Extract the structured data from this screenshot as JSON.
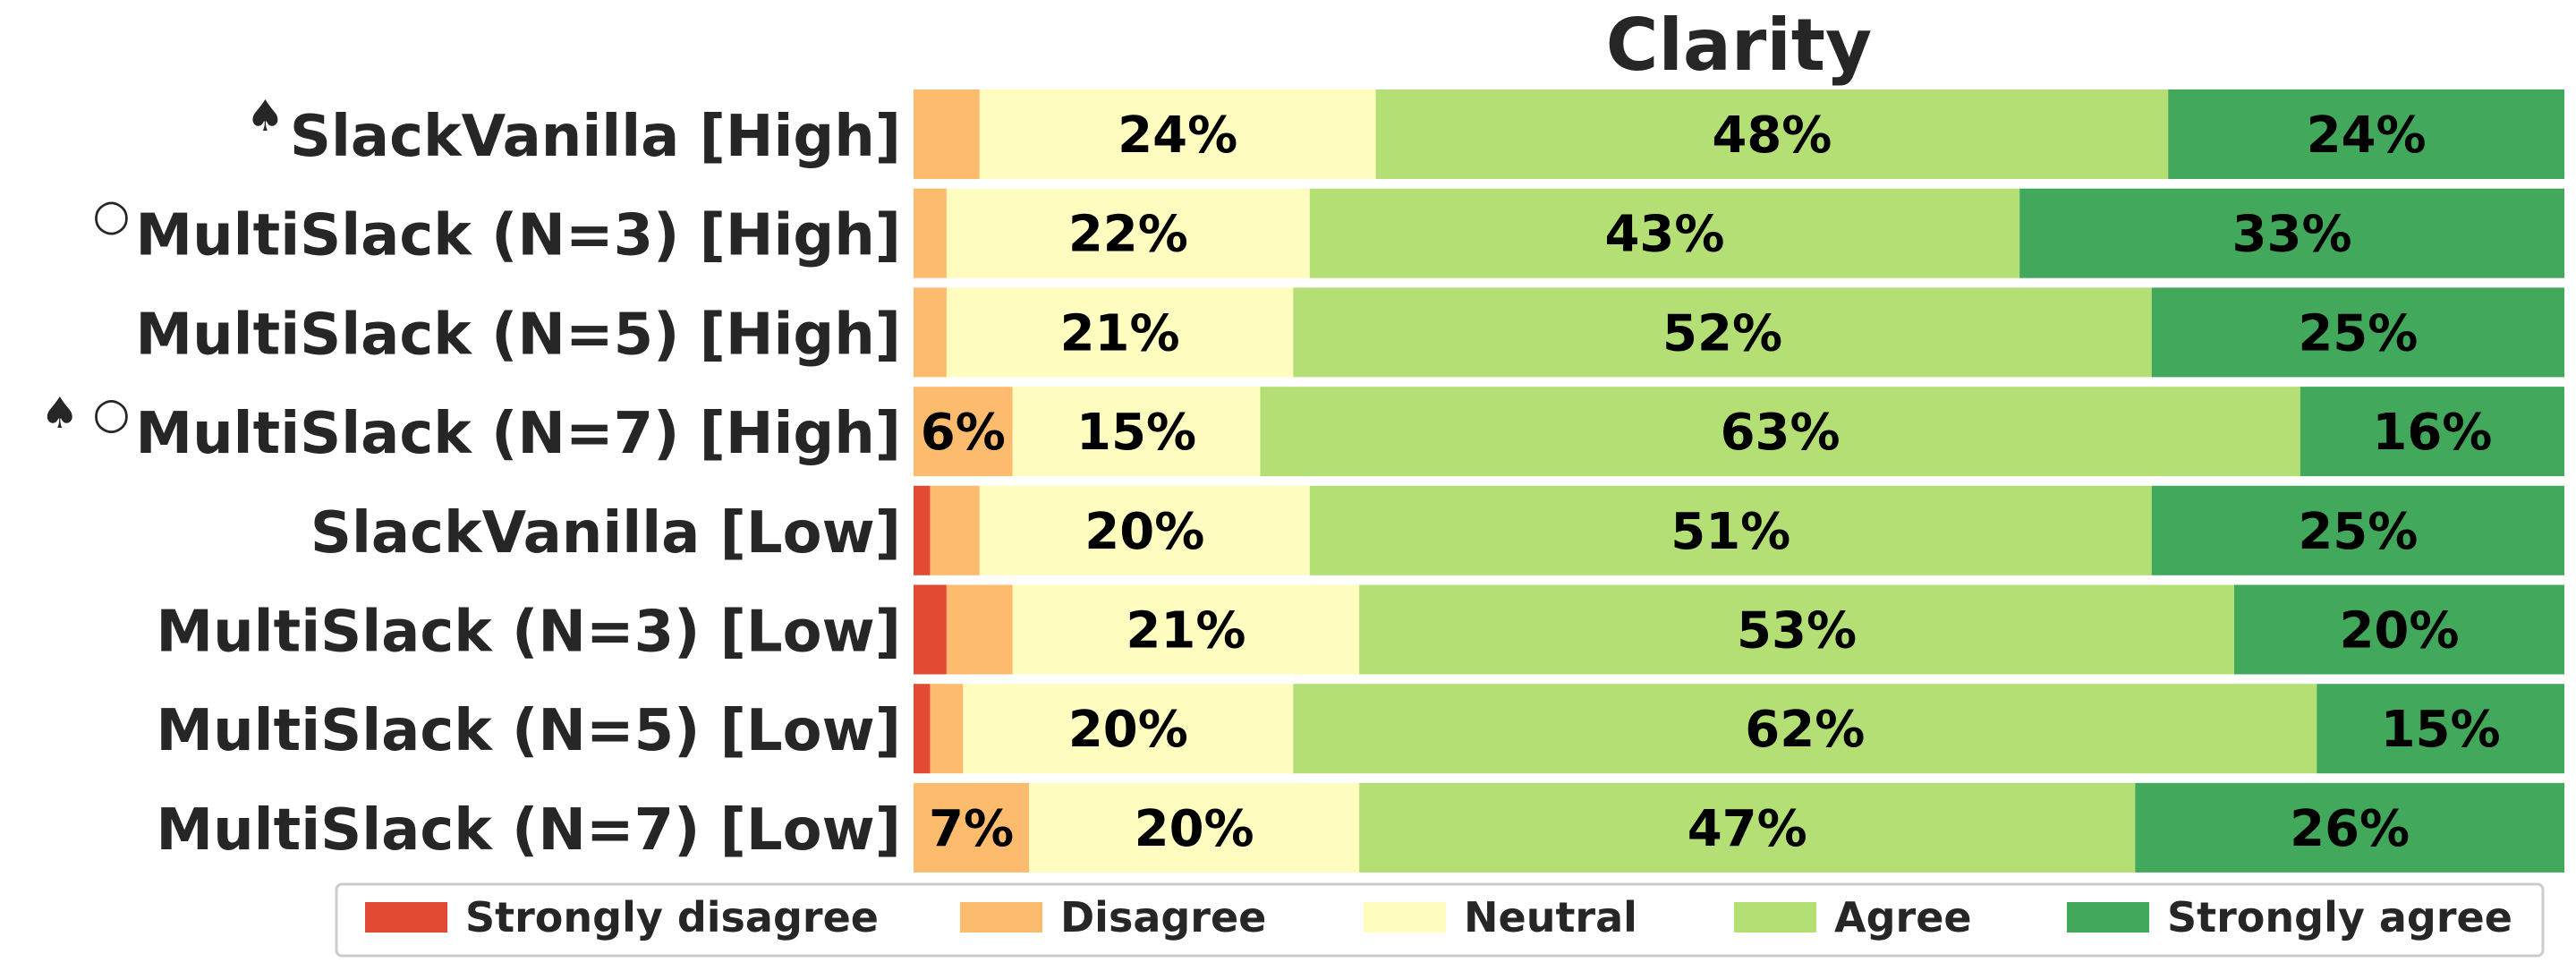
{
  "chart_data": {
    "type": "bar",
    "orientation": "horizontal-stacked-100",
    "title": "Clarity",
    "xlim": [
      0,
      100
    ],
    "legend_position": "bottom",
    "series": [
      {
        "name": "Strongly disagree",
        "color": "#e34a33"
      },
      {
        "name": "Disagree",
        "color": "#fdbb6e"
      },
      {
        "name": "Neutral",
        "color": "#fefcbf"
      },
      {
        "name": "Agree",
        "color": "#b4df74"
      },
      {
        "name": "Strongly agree",
        "color": "#41a85c"
      }
    ],
    "rows": [
      {
        "label": "SlackVanilla [High]",
        "marker": "♠",
        "values": [
          0,
          4,
          24,
          48,
          24
        ],
        "labels": [
          "",
          "",
          "24%",
          "48%",
          "24%"
        ]
      },
      {
        "label": "MultiSlack (N=3) [High]",
        "marker": "○",
        "values": [
          0,
          2,
          22,
          43,
          33
        ],
        "labels": [
          "",
          "",
          "22%",
          "43%",
          "33%"
        ]
      },
      {
        "label": "MultiSlack (N=5) [High]",
        "marker": "",
        "values": [
          0,
          2,
          21,
          52,
          25
        ],
        "labels": [
          "",
          "",
          "21%",
          "52%",
          "25%"
        ]
      },
      {
        "label": "MultiSlack (N=7) [High]",
        "marker": "♠ ○",
        "values": [
          0,
          6,
          15,
          63,
          16
        ],
        "labels": [
          "",
          "6%",
          "15%",
          "63%",
          "16%"
        ]
      },
      {
        "label": "SlackVanilla [Low]",
        "marker": "",
        "values": [
          1,
          3,
          20,
          51,
          25
        ],
        "labels": [
          "",
          "",
          "20%",
          "51%",
          "25%"
        ]
      },
      {
        "label": "MultiSlack (N=3) [Low]",
        "marker": "",
        "values": [
          2,
          4,
          21,
          53,
          20
        ],
        "labels": [
          "",
          "",
          "21%",
          "53%",
          "20%"
        ]
      },
      {
        "label": "MultiSlack (N=5) [Low]",
        "marker": "",
        "values": [
          1,
          2,
          20,
          62,
          15
        ],
        "labels": [
          "",
          "",
          "20%",
          "62%",
          "15%"
        ]
      },
      {
        "label": "MultiSlack (N=7) [Low]",
        "marker": "",
        "values": [
          0,
          7,
          20,
          47,
          26
        ],
        "labels": [
          "",
          "7%",
          "20%",
          "47%",
          "26%"
        ]
      }
    ]
  }
}
